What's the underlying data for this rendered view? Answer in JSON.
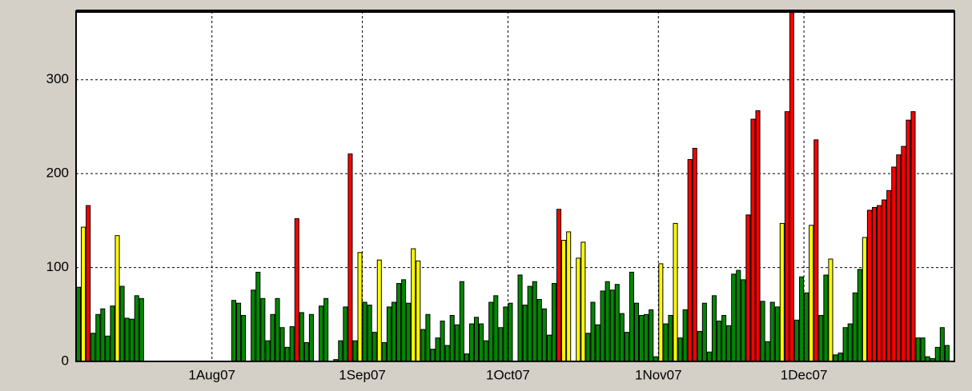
{
  "chart_data": {
    "type": "bar",
    "categories": [
      null,
      null,
      null,
      null,
      null,
      null,
      null,
      null,
      null,
      null,
      null,
      null,
      null,
      null,
      null,
      null,
      null,
      null,
      null,
      null,
      null,
      null,
      null,
      null,
      null,
      null,
      null,
      null,
      "1Aug07",
      null,
      null,
      null,
      null,
      null,
      null,
      null,
      null,
      null,
      null,
      null,
      null,
      null,
      null,
      null,
      null,
      null,
      null,
      null,
      null,
      null,
      null,
      null,
      null,
      null,
      null,
      null,
      null,
      null,
      null,
      "1Sep07",
      null,
      null,
      null,
      null,
      null,
      null,
      null,
      null,
      null,
      null,
      null,
      null,
      null,
      null,
      null,
      null,
      null,
      null,
      null,
      null,
      null,
      null,
      null,
      null,
      null,
      null,
      null,
      null,
      null,
      "1Oct07",
      null,
      null,
      null,
      null,
      null,
      null,
      null,
      null,
      null,
      null,
      null,
      null,
      null,
      null,
      null,
      null,
      null,
      null,
      null,
      null,
      null,
      null,
      null,
      null,
      null,
      null,
      null,
      null,
      null,
      null,
      "1Nov07",
      null,
      null,
      null,
      null,
      null,
      null,
      null,
      null,
      null,
      null,
      null,
      null,
      null,
      null,
      null,
      null,
      null,
      null,
      null,
      null,
      null,
      null,
      null,
      null,
      null,
      null,
      null,
      null,
      null,
      "1Dec07",
      null,
      null,
      null,
      null,
      null,
      null,
      null,
      null,
      null,
      null,
      null,
      null,
      null,
      null,
      null,
      null,
      null,
      null,
      null,
      null,
      null,
      null,
      null,
      null,
      null,
      null,
      null,
      null,
      null,
      null
    ],
    "values": [
      79,
      143,
      166,
      30,
      50,
      56,
      27,
      59,
      134,
      80,
      46,
      45,
      70,
      67,
      0,
      0,
      0,
      0,
      0,
      0,
      0,
      0,
      0,
      0,
      0,
      0,
      0,
      0,
      0,
      0,
      0,
      0,
      65,
      62,
      49,
      0,
      76,
      95,
      67,
      22,
      50,
      67,
      36,
      15,
      37,
      152,
      52,
      20,
      50,
      0,
      59,
      67,
      0,
      2,
      22,
      58,
      221,
      22,
      116,
      63,
      60,
      31,
      108,
      20,
      58,
      63,
      83,
      87,
      62,
      120,
      107,
      34,
      50,
      13,
      25,
      43,
      17,
      49,
      39,
      85,
      8,
      40,
      47,
      40,
      22,
      63,
      70,
      36,
      58,
      62,
      0,
      92,
      60,
      80,
      85,
      66,
      56,
      28,
      83,
      162,
      129,
      138,
      0,
      110,
      127,
      30,
      63,
      39,
      75,
      85,
      76,
      82,
      51,
      31,
      95,
      62,
      49,
      50,
      55,
      5,
      104,
      40,
      49,
      147,
      25,
      55,
      215,
      227,
      32,
      62,
      10,
      70,
      43,
      49,
      38,
      93,
      97,
      87,
      156,
      258,
      267,
      64,
      21,
      63,
      58,
      147,
      266,
      380,
      44,
      90,
      73,
      145,
      236,
      49,
      92,
      109,
      7,
      9,
      36,
      40,
      73,
      98,
      132,
      161,
      164,
      166,
      172,
      182,
      207,
      220,
      229,
      257,
      266,
      25,
      25,
      5,
      3,
      15,
      36,
      17,
      0
    ],
    "colors": [
      "#080",
      "#ff0",
      "#f00",
      "#080",
      "#080",
      "#080",
      "#080",
      "#080",
      "#ff0",
      "#080",
      "#080",
      "#080",
      "#080",
      "#080",
      "#080",
      "#080",
      "#080",
      "#080",
      "#080",
      "#080",
      "#080",
      "#080",
      "#080",
      "#080",
      "#080",
      "#080",
      "#080",
      "#080",
      "#080",
      "#080",
      "#080",
      "#080",
      "#080",
      "#080",
      "#080",
      "#080",
      "#080",
      "#080",
      "#080",
      "#080",
      "#080",
      "#080",
      "#080",
      "#080",
      "#080",
      "#f00",
      "#080",
      "#080",
      "#080",
      "#080",
      "#080",
      "#080",
      "#080",
      "#080",
      "#080",
      "#080",
      "#f00",
      "#080",
      "#ff0",
      "#080",
      "#080",
      "#080",
      "#ff0",
      "#080",
      "#080",
      "#080",
      "#080",
      "#080",
      "#080",
      "#ff0",
      "#ff0",
      "#080",
      "#080",
      "#080",
      "#080",
      "#080",
      "#080",
      "#080",
      "#080",
      "#080",
      "#080",
      "#080",
      "#080",
      "#080",
      "#080",
      "#080",
      "#080",
      "#080",
      "#080",
      "#080",
      "#080",
      "#080",
      "#080",
      "#080",
      "#080",
      "#080",
      "#080",
      "#080",
      "#080",
      "#f00",
      "#ff0",
      "#ff0",
      "#080",
      "#ff0",
      "#ff0",
      "#080",
      "#080",
      "#080",
      "#080",
      "#080",
      "#080",
      "#080",
      "#080",
      "#080",
      "#080",
      "#080",
      "#080",
      "#080",
      "#080",
      "#080",
      "#ff0",
      "#080",
      "#080",
      "#ff0",
      "#080",
      "#080",
      "#f00",
      "#f00",
      "#080",
      "#080",
      "#080",
      "#080",
      "#080",
      "#080",
      "#080",
      "#080",
      "#080",
      "#080",
      "#f00",
      "#f00",
      "#f00",
      "#080",
      "#080",
      "#080",
      "#080",
      "#ff0",
      "#f00",
      "#f00",
      "#080",
      "#080",
      "#080",
      "#ff0",
      "#f00",
      "#080",
      "#080",
      "#ff0",
      "#080",
      "#080",
      "#080",
      "#080",
      "#080",
      "#080",
      "#ff0",
      "#f00",
      "#f00",
      "#f00",
      "#f00",
      "#f00",
      "#f00",
      "#f00",
      "#f00",
      "#f00",
      "#f00",
      "#080",
      "#080",
      "#080",
      "#080",
      "#080",
      "#080",
      "#080",
      "#080"
    ],
    "ylim": [
      0,
      373
    ],
    "yticks": [
      0,
      100,
      200,
      300
    ],
    "grid": true
  }
}
